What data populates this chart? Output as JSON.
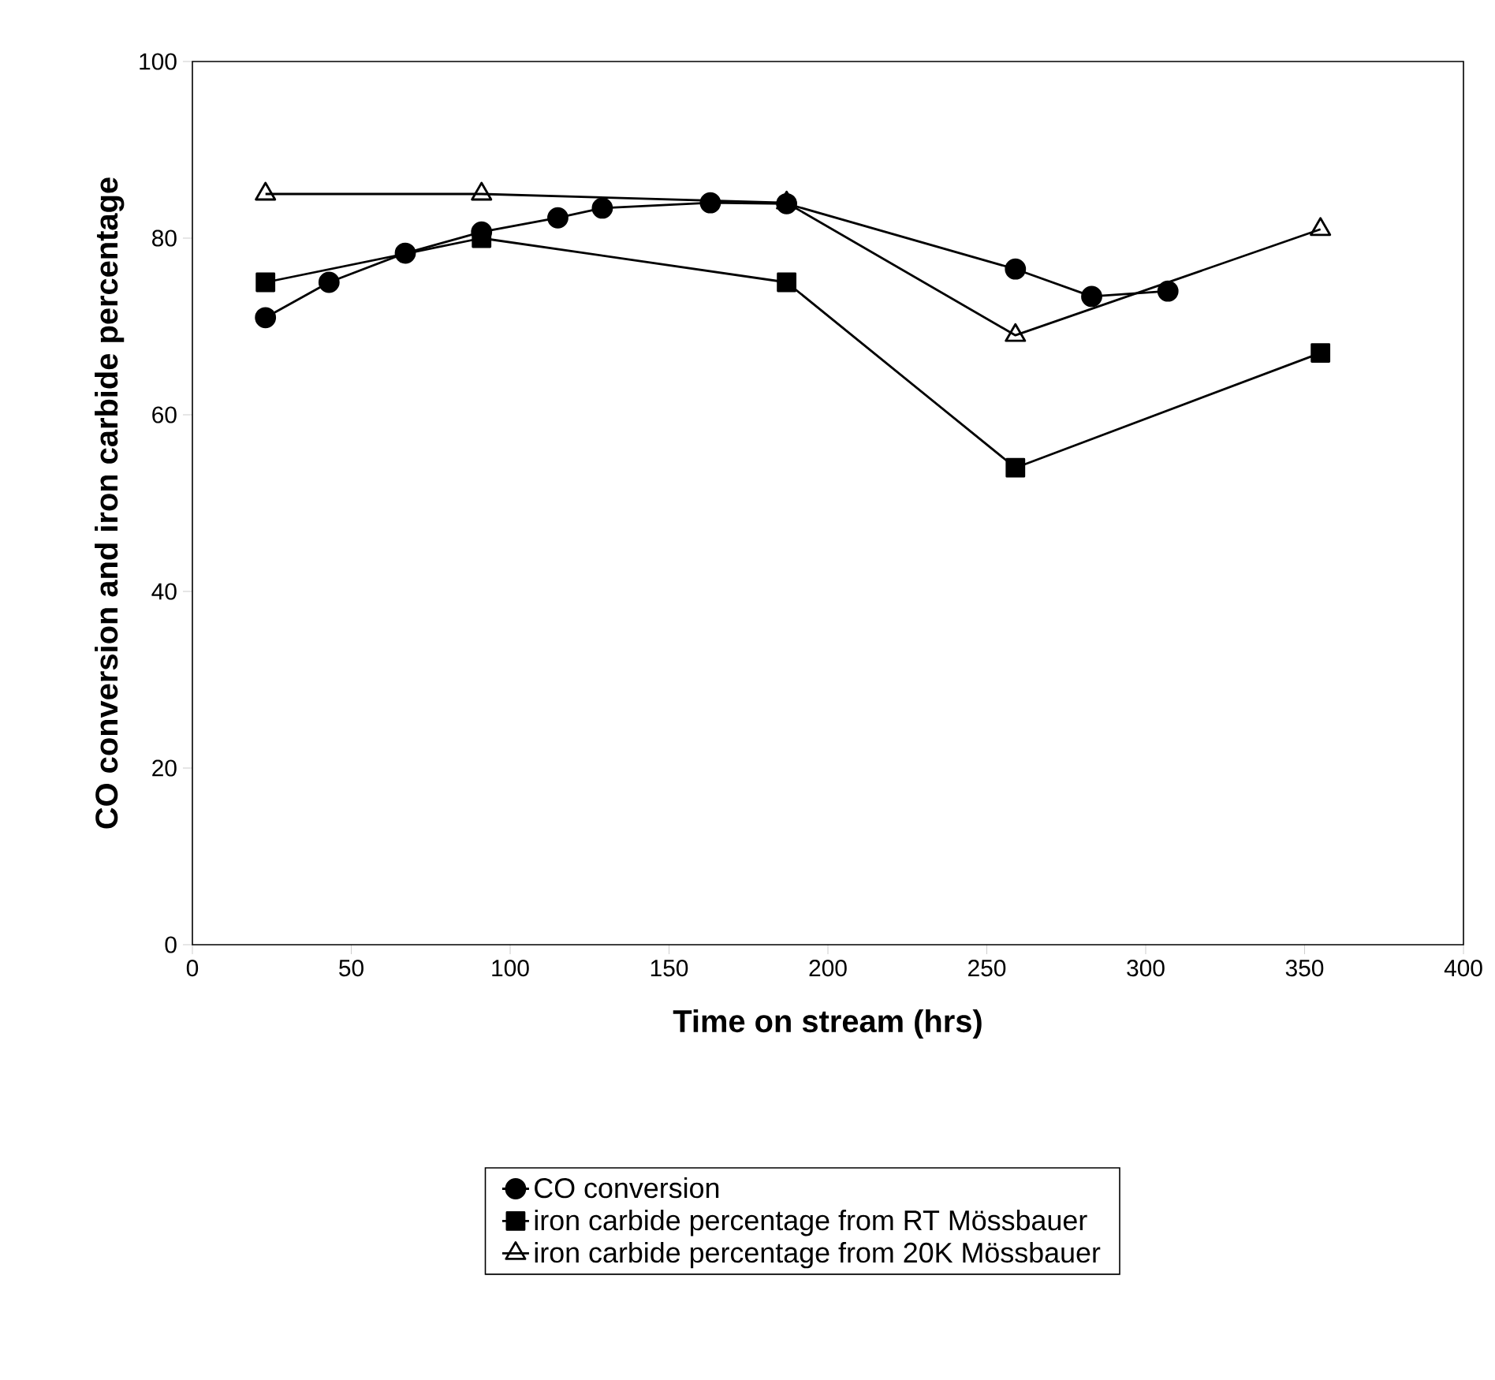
{
  "chart_data": {
    "type": "line",
    "xlabel": "Time on stream (hrs)",
    "ylabel": "CO conversion and iron carbide percentage",
    "xlim": [
      0,
      400
    ],
    "xticks": [
      0,
      50,
      100,
      150,
      200,
      250,
      300,
      350,
      400
    ],
    "ylim": [
      0,
      100
    ],
    "yticks": [
      0,
      20,
      40,
      60,
      80,
      100
    ],
    "grid": false,
    "legend": "bottom",
    "line_style": "solid",
    "series": [
      {
        "name": "CO conversion",
        "color": "#000000",
        "marker": "circle",
        "x": [
          23,
          43,
          67,
          91,
          115,
          129,
          163,
          187,
          259,
          283,
          307
        ],
        "values": [
          71,
          75,
          78.3,
          80.7,
          82.3,
          83.4,
          84,
          83.9,
          76.5,
          73.4,
          74
        ]
      },
      {
        "name": "iron carbide percentage from RT Mössbauer",
        "color": "#000000",
        "marker": "square",
        "x": [
          23,
          91,
          187,
          259,
          355
        ],
        "values": [
          75,
          80,
          75,
          54,
          67
        ]
      },
      {
        "name": "iron carbide percentage from 20K Mössbauer",
        "color": "#000000",
        "marker": "triangle",
        "x": [
          23,
          91,
          187,
          259,
          355
        ],
        "values": [
          85,
          85,
          84,
          69,
          81
        ]
      }
    ]
  }
}
